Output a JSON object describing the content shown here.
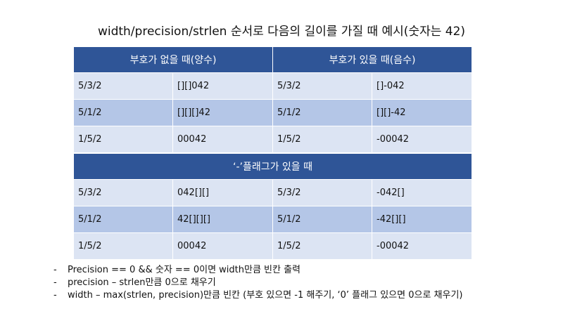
{
  "title": "width/precision/strlen 순서로 다음의 길이를 가질 때 예시(숫자는 42)",
  "table1": {
    "headers": [
      "부호가 없을 때(양수)",
      "부호가 있을 때(음수)"
    ],
    "rows": [
      [
        "5/3/2",
        "[][]042",
        "5/3/2",
        "[]-042"
      ],
      [
        "5/1/2",
        "[][][]42",
        "5/1/2",
        "[][]-42"
      ],
      [
        "1/5/2",
        "00042",
        "1/5/2",
        "-00042"
      ]
    ]
  },
  "table2": {
    "header": "‘-’플래그가 있을 때",
    "rows": [
      [
        "5/3/2",
        "042[][]",
        "5/3/2",
        "-042[]"
      ],
      [
        "5/1/2",
        "42[][][]",
        "5/1/2",
        "-42[][]"
      ],
      [
        "1/5/2",
        "00042",
        "1/5/2",
        "-00042"
      ]
    ]
  },
  "notes": [
    "Precision == 0 && 숫자 == 0이면 width만큼 빈칸 출력",
    "precision – strlen만큼 0으로 채우기",
    "width – max(strlen, precision)만큼 빈칸 (부호 있으면 -1 해주기, ‘0’ 플래그 있으면 0으로 채우기)"
  ],
  "note_marker": "-",
  "colors": {
    "header": "#2f5597",
    "row_light": "#dce4f3",
    "row_dark": "#b4c6e7"
  }
}
